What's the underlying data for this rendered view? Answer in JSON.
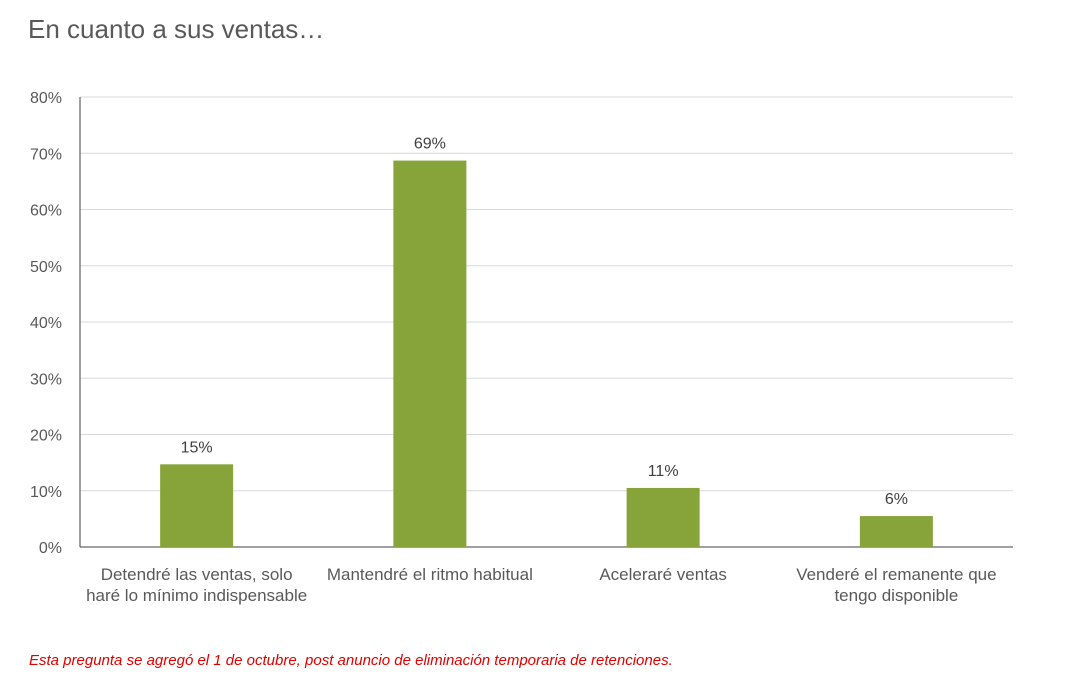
{
  "title": "En cuanto a sus ventas…",
  "note": "Esta pregunta se agregó el 1 de octubre, post anuncio de eliminación temporaria de retenciones.",
  "chart_data": {
    "type": "bar",
    "title": "En cuanto a sus ventas…",
    "xlabel": "",
    "ylabel": "",
    "ylim": [
      0,
      80
    ],
    "yticks": [
      "0%",
      "10%",
      "20%",
      "30%",
      "40%",
      "50%",
      "60%",
      "70%",
      "80%"
    ],
    "grid": true,
    "categories": [
      "Detendré las ventas, solo haré lo mínimo indispensable",
      "Mantendré el ritmo habitual",
      "Aceleraré ventas",
      "Venderé el remanente que tengo disponible"
    ],
    "values": [
      14.7,
      68.7,
      10.5,
      5.5
    ],
    "data_labels": [
      "15%",
      "69%",
      "11%",
      "6%"
    ],
    "bar_color": "#86a43a"
  }
}
